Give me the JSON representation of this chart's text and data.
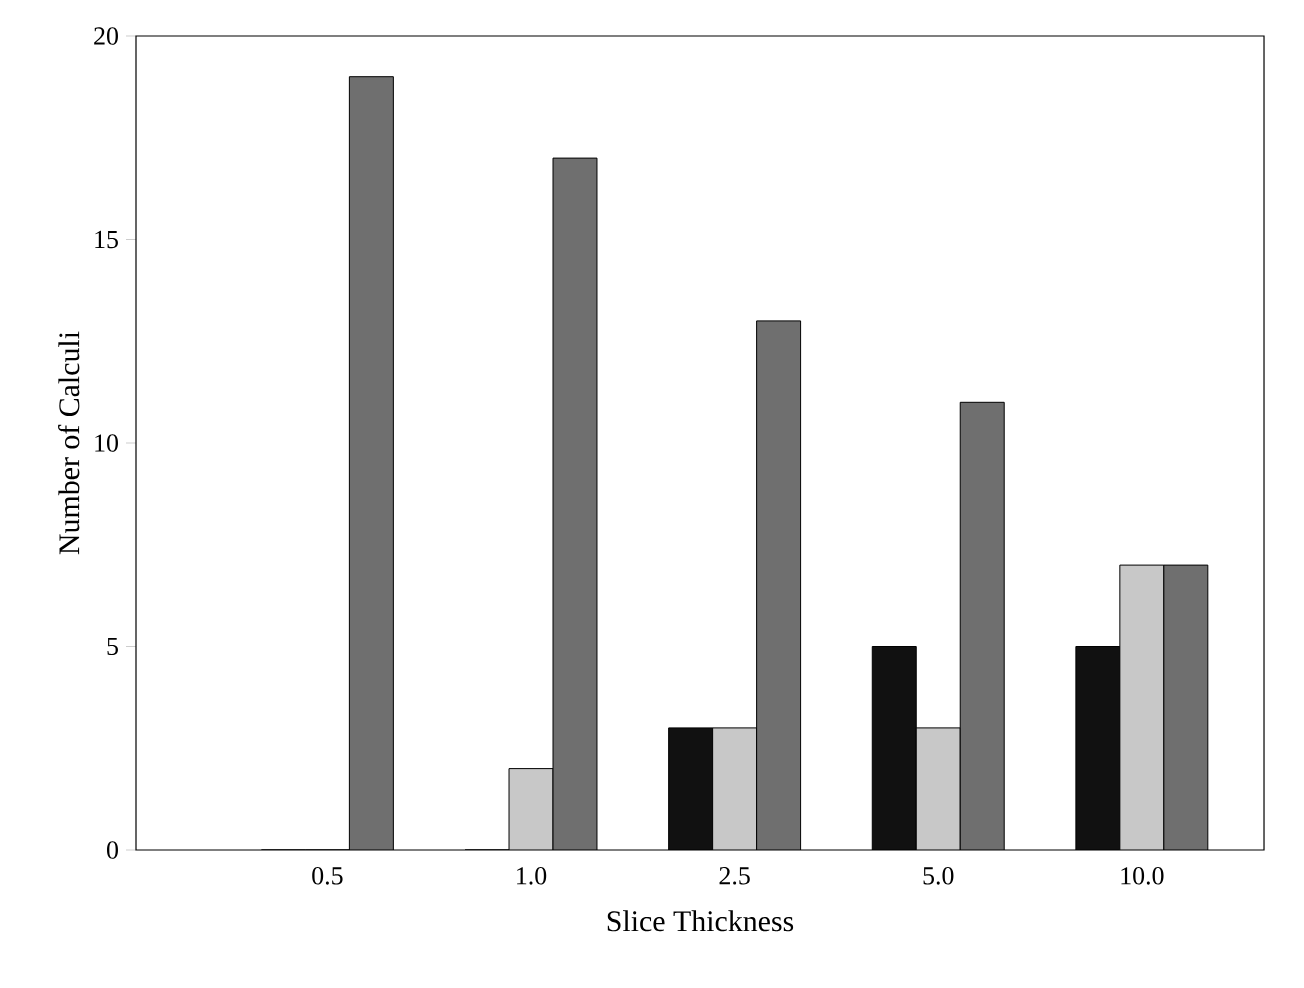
{
  "chart_data": {
    "type": "bar",
    "xlabel": "Slice Thickness",
    "ylabel": "Number of Calculi",
    "categories": [
      "0.5",
      "1.0",
      "2.5",
      "5.0",
      "10.0"
    ],
    "series": [
      {
        "color": "#111111",
        "values": [
          0,
          0,
          3,
          5,
          5
        ]
      },
      {
        "color": "#c8c8c8",
        "values": [
          0,
          2,
          3,
          3,
          7
        ]
      },
      {
        "color": "#6f6f6f",
        "values": [
          19,
          17,
          13,
          11,
          7
        ]
      }
    ],
    "ylim": [
      0,
      20
    ],
    "yticks": [
      0,
      5,
      10,
      15,
      20
    ]
  }
}
